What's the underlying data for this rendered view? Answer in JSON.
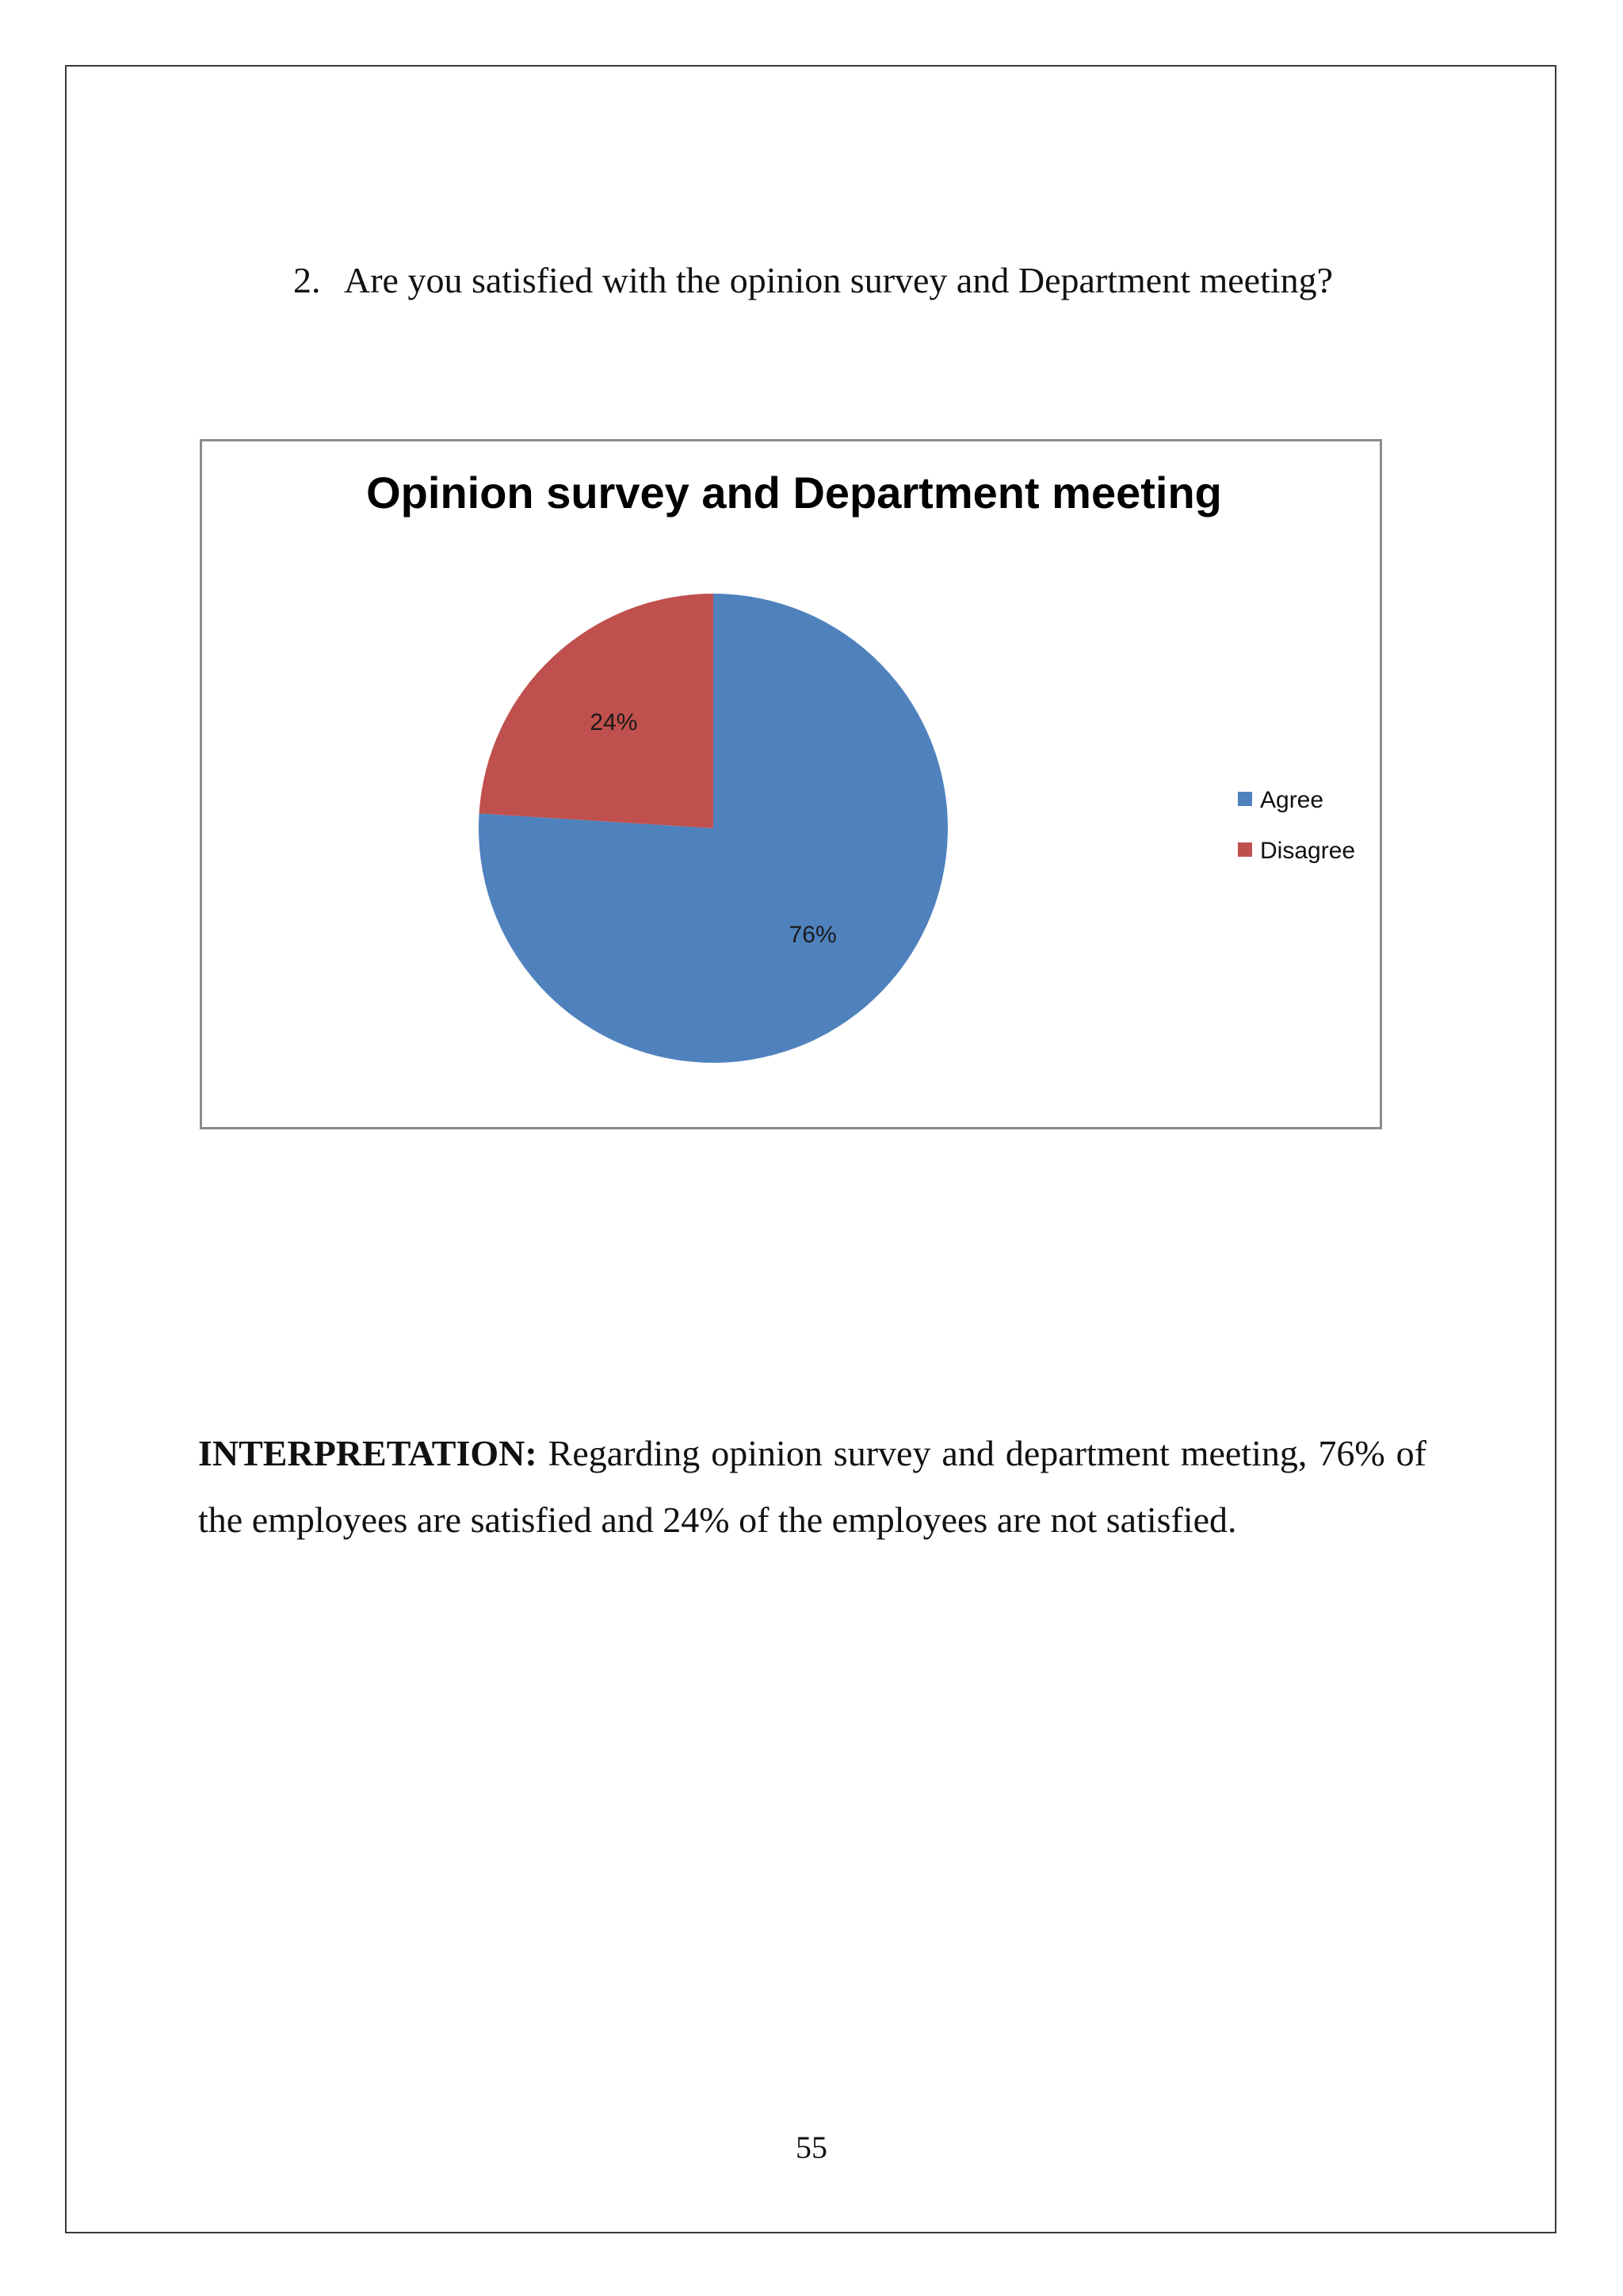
{
  "question": {
    "number": "2.",
    "text": "Are you satisfied with the opinion survey and Department meeting?"
  },
  "chart_data": {
    "type": "pie",
    "title": "Opinion survey and Department meeting",
    "categories": [
      "Agree",
      "Disagree"
    ],
    "values": [
      76,
      24
    ],
    "labels": [
      "76%",
      "24%"
    ],
    "colors": [
      "#4f81bd",
      "#c0504d"
    ],
    "legend_position": "right"
  },
  "interpretation": {
    "label": "INTERPRETATION:",
    "text": "Regarding opinion survey and department meeting, 76% of the employees are satisfied and 24% of the employees are not satisfied."
  },
  "page_number": "55"
}
